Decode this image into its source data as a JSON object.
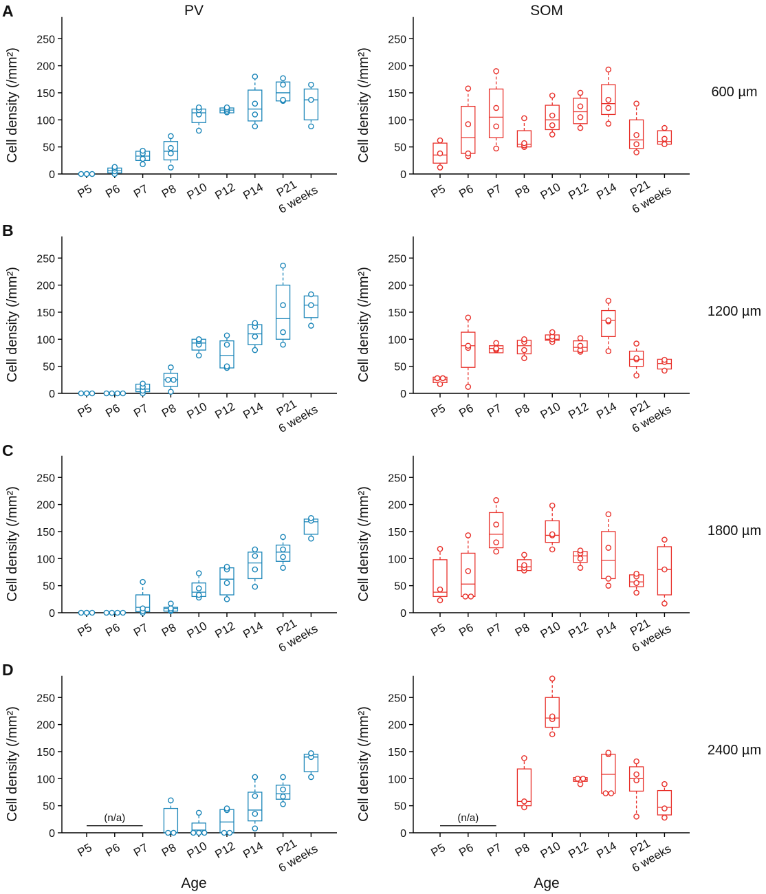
{
  "titles": {
    "left": "PV",
    "right": "SOM"
  },
  "panels": [
    "A",
    "B",
    "C",
    "D"
  ],
  "depths": [
    "600 µm",
    "1200 µm",
    "1800 µm",
    "2400 µm"
  ],
  "xlabel": "Age",
  "na_label": "(n/a)",
  "colors": {
    "pv": "#1a85b8",
    "som": "#e8302a",
    "axis": "#000000"
  },
  "chart_data": {
    "type": "box",
    "ylabel": "Cell density (/mm²)",
    "ylim": [
      0,
      290
    ],
    "yticks": [
      0,
      50,
      100,
      150,
      200,
      250
    ],
    "categories": [
      "P5",
      "P6",
      "P7",
      "P8",
      "P10",
      "P12",
      "P14",
      "P21",
      "6 weeks"
    ],
    "charts": [
      {
        "panel": "A",
        "cell": "PV",
        "depth": "600 µm",
        "boxes": [
          {
            "c": "P5",
            "q1": 0,
            "med": 0,
            "q3": 0,
            "min": 0,
            "max": 0,
            "pts": [
              0,
              0,
              0
            ]
          },
          {
            "c": "P6",
            "q1": 2,
            "med": 6,
            "q3": 11,
            "min": 0,
            "max": 13,
            "pts": [
              0,
              5,
              10,
              13
            ]
          },
          {
            "c": "P7",
            "q1": 25,
            "med": 33,
            "q3": 42,
            "min": 18,
            "max": 45,
            "pts": [
              18,
              28,
              38,
              43
            ]
          },
          {
            "c": "P8",
            "q1": 26,
            "med": 42,
            "q3": 60,
            "min": 12,
            "max": 70,
            "pts": [
              12,
              38,
              48,
              70
            ]
          },
          {
            "c": "P10",
            "q1": 95,
            "med": 113,
            "q3": 120,
            "min": 80,
            "max": 123,
            "pts": [
              80,
              110,
              118,
              123
            ]
          },
          {
            "c": "P12",
            "q1": 113,
            "med": 118,
            "q3": 122,
            "min": 113,
            "max": 123,
            "pts": [
              114,
              117,
              120,
              123
            ]
          },
          {
            "c": "P14",
            "q1": 98,
            "med": 120,
            "q3": 155,
            "min": 88,
            "max": 180,
            "pts": [
              88,
              110,
              130,
              180
            ]
          },
          {
            "c": "P21",
            "q1": 135,
            "med": 150,
            "q3": 170,
            "min": 135,
            "max": 177,
            "pts": [
              135,
              137,
              165,
              177
            ]
          },
          {
            "c": "6 weeks",
            "q1": 100,
            "med": 137,
            "q3": 157,
            "min": 88,
            "max": 165,
            "pts": [
              88,
              137,
              165
            ]
          }
        ]
      },
      {
        "panel": "A",
        "cell": "SOM",
        "depth": "600 µm",
        "boxes": [
          {
            "c": "P5",
            "q1": 20,
            "med": 35,
            "q3": 57,
            "min": 12,
            "max": 62,
            "pts": [
              12,
              38,
              62
            ]
          },
          {
            "c": "P6",
            "q1": 38,
            "med": 67,
            "q3": 125,
            "min": 33,
            "max": 158,
            "pts": [
              33,
              38,
              92,
              158
            ]
          },
          {
            "c": "P7",
            "q1": 67,
            "med": 105,
            "q3": 157,
            "min": 47,
            "max": 190,
            "pts": [
              47,
              88,
              122,
              190
            ]
          },
          {
            "c": "P8",
            "q1": 50,
            "med": 55,
            "q3": 80,
            "min": 50,
            "max": 103,
            "pts": [
              50,
              53,
              57,
              103
            ]
          },
          {
            "c": "P10",
            "q1": 82,
            "med": 100,
            "q3": 127,
            "min": 73,
            "max": 145,
            "pts": [
              73,
              90,
              108,
              145
            ]
          },
          {
            "c": "P12",
            "q1": 93,
            "med": 115,
            "q3": 140,
            "min": 85,
            "max": 150,
            "pts": [
              85,
              105,
              125,
              150
            ]
          },
          {
            "c": "P14",
            "q1": 110,
            "med": 130,
            "q3": 165,
            "min": 93,
            "max": 193,
            "pts": [
              93,
              122,
              137,
              193
            ]
          },
          {
            "c": "P21",
            "q1": 47,
            "med": 63,
            "q3": 100,
            "min": 40,
            "max": 130,
            "pts": [
              40,
              55,
              72,
              130
            ]
          },
          {
            "c": "6 weeks",
            "q1": 55,
            "med": 60,
            "q3": 80,
            "min": 55,
            "max": 85,
            "pts": [
              55,
              65,
              85
            ]
          }
        ]
      },
      {
        "panel": "B",
        "cell": "PV",
        "depth": "1200 µm",
        "boxes": [
          {
            "c": "P5",
            "q1": 0,
            "med": 0,
            "q3": 0,
            "min": 0,
            "max": 0,
            "pts": [
              0,
              0,
              0
            ]
          },
          {
            "c": "P6",
            "q1": 0,
            "med": 0,
            "q3": 0,
            "min": 0,
            "max": 0,
            "pts": [
              0,
              0,
              0,
              0
            ]
          },
          {
            "c": "P7",
            "q1": 3,
            "med": 8,
            "q3": 17,
            "min": 0,
            "max": 18,
            "pts": [
              0,
              5,
              12,
              18
            ]
          },
          {
            "c": "P8",
            "q1": 13,
            "med": 25,
            "q3": 37,
            "min": 3,
            "max": 48,
            "pts": [
              3,
              25,
              25,
              48
            ]
          },
          {
            "c": "P10",
            "q1": 80,
            "med": 93,
            "q3": 100,
            "min": 70,
            "max": 100,
            "pts": [
              70,
              90,
              97,
              100
            ]
          },
          {
            "c": "P12",
            "q1": 47,
            "med": 70,
            "q3": 97,
            "min": 47,
            "max": 107,
            "pts": [
              47,
              50,
              90,
              107
            ]
          },
          {
            "c": "P14",
            "q1": 90,
            "med": 110,
            "q3": 127,
            "min": 80,
            "max": 130,
            "pts": [
              80,
              105,
              123,
              130
            ]
          },
          {
            "c": "P21",
            "q1": 100,
            "med": 138,
            "q3": 200,
            "min": 90,
            "max": 236,
            "pts": [
              90,
              113,
              163,
              236
            ]
          },
          {
            "c": "6 weeks",
            "q1": 140,
            "med": 163,
            "q3": 180,
            "min": 125,
            "max": 183,
            "pts": [
              125,
              163,
              183
            ]
          }
        ]
      },
      {
        "panel": "B",
        "cell": "SOM",
        "depth": "1200 µm",
        "boxes": [
          {
            "c": "P5",
            "q1": 20,
            "med": 25,
            "q3": 30,
            "min": 17,
            "max": 30,
            "pts": [
              17,
              28,
              28
            ]
          },
          {
            "c": "P6",
            "q1": 48,
            "med": 88,
            "q3": 113,
            "min": 12,
            "max": 140,
            "pts": [
              12,
              84,
              88,
              140
            ]
          },
          {
            "c": "P7",
            "q1": 75,
            "med": 83,
            "q3": 88,
            "min": 75,
            "max": 93,
            "pts": [
              80,
              82,
              83,
              93
            ]
          },
          {
            "c": "P8",
            "q1": 73,
            "med": 88,
            "q3": 98,
            "min": 65,
            "max": 100,
            "pts": [
              65,
              80,
              95,
              100
            ]
          },
          {
            "c": "P10",
            "q1": 98,
            "med": 100,
            "q3": 108,
            "min": 95,
            "max": 113,
            "pts": [
              95,
              100,
              105,
              113
            ]
          },
          {
            "c": "P12",
            "q1": 78,
            "med": 85,
            "q3": 97,
            "min": 77,
            "max": 102,
            "pts": [
              77,
              80,
              88,
              102
            ]
          },
          {
            "c": "P14",
            "q1": 105,
            "med": 135,
            "q3": 153,
            "min": 78,
            "max": 171,
            "pts": [
              78,
              133,
              135,
              171
            ]
          },
          {
            "c": "P21",
            "q1": 50,
            "med": 63,
            "q3": 78,
            "min": 33,
            "max": 92,
            "pts": [
              33,
              63,
              65,
              92
            ]
          },
          {
            "c": "6 weeks",
            "q1": 45,
            "med": 55,
            "q3": 63,
            "min": 42,
            "max": 65,
            "pts": [
              42,
              58,
              62
            ]
          }
        ]
      },
      {
        "panel": "C",
        "cell": "PV",
        "depth": "1800 µm",
        "boxes": [
          {
            "c": "P5",
            "q1": 0,
            "med": 0,
            "q3": 0,
            "min": 0,
            "max": 0,
            "pts": [
              0,
              0,
              0
            ]
          },
          {
            "c": "P6",
            "q1": 0,
            "med": 0,
            "q3": 0,
            "min": 0,
            "max": 0,
            "pts": [
              0,
              0,
              0,
              0
            ]
          },
          {
            "c": "P7",
            "q1": 2,
            "med": 10,
            "q3": 33,
            "min": 0,
            "max": 57,
            "pts": [
              0,
              3,
              8,
              57
            ]
          },
          {
            "c": "P8",
            "q1": 3,
            "med": 8,
            "q3": 10,
            "min": 3,
            "max": 17,
            "pts": [
              3,
              5,
              8,
              17
            ]
          },
          {
            "c": "P10",
            "q1": 30,
            "med": 38,
            "q3": 55,
            "min": 28,
            "max": 73,
            "pts": [
              28,
              33,
              45,
              73
            ]
          },
          {
            "c": "P12",
            "q1": 33,
            "med": 62,
            "q3": 83,
            "min": 25,
            "max": 85,
            "pts": [
              25,
              55,
              80,
              85
            ]
          },
          {
            "c": "P14",
            "q1": 63,
            "med": 92,
            "q3": 112,
            "min": 48,
            "max": 117,
            "pts": [
              48,
              80,
              105,
              117
            ]
          },
          {
            "c": "P21",
            "q1": 95,
            "med": 112,
            "q3": 125,
            "min": 83,
            "max": 140,
            "pts": [
              83,
              103,
              117,
              140
            ]
          },
          {
            "c": "6 weeks",
            "q1": 145,
            "med": 168,
            "q3": 173,
            "min": 137,
            "max": 175,
            "pts": [
              137,
              170,
              175
            ]
          }
        ]
      },
      {
        "panel": "C",
        "cell": "SOM",
        "depth": "1800 µm",
        "boxes": [
          {
            "c": "P5",
            "q1": 30,
            "med": 38,
            "q3": 98,
            "min": 23,
            "max": 118,
            "pts": [
              23,
              43,
              118
            ]
          },
          {
            "c": "P6",
            "q1": 30,
            "med": 53,
            "q3": 110,
            "min": 30,
            "max": 143,
            "pts": [
              30,
              30,
              77,
              143
            ]
          },
          {
            "c": "P7",
            "q1": 120,
            "med": 145,
            "q3": 185,
            "min": 113,
            "max": 208,
            "pts": [
              113,
              130,
              163,
              208
            ]
          },
          {
            "c": "P8",
            "q1": 78,
            "med": 85,
            "q3": 98,
            "min": 78,
            "max": 107,
            "pts": [
              78,
              83,
              88,
              107
            ]
          },
          {
            "c": "P10",
            "q1": 130,
            "med": 143,
            "q3": 170,
            "min": 117,
            "max": 198,
            "pts": [
              117,
              143,
              145,
              198
            ]
          },
          {
            "c": "P12",
            "q1": 93,
            "med": 105,
            "q3": 113,
            "min": 83,
            "max": 115,
            "pts": [
              83,
              100,
              110,
              115
            ]
          },
          {
            "c": "P14",
            "q1": 63,
            "med": 97,
            "q3": 150,
            "min": 50,
            "max": 182,
            "pts": [
              50,
              63,
              120,
              182
            ]
          },
          {
            "c": "P21",
            "q1": 48,
            "med": 57,
            "q3": 70,
            "min": 37,
            "max": 72,
            "pts": [
              37,
              55,
              67,
              72
            ]
          },
          {
            "c": "6 weeks",
            "q1": 33,
            "med": 80,
            "q3": 122,
            "min": 17,
            "max": 135,
            "pts": [
              17,
              80,
              135
            ]
          }
        ]
      },
      {
        "panel": "D",
        "cell": "PV",
        "depth": "2400 µm",
        "na": [
          "P5",
          "P6",
          "P7"
        ],
        "boxes": [
          {
            "c": "P8",
            "q1": 0,
            "med": 0,
            "q3": 45,
            "min": 0,
            "max": 60,
            "pts": [
              0,
              0,
              60
            ]
          },
          {
            "c": "P10",
            "q1": 0,
            "med": 5,
            "q3": 18,
            "min": 0,
            "max": 37,
            "pts": [
              0,
              0,
              0,
              37
            ]
          },
          {
            "c": "P12",
            "q1": 0,
            "med": 20,
            "q3": 43,
            "min": 0,
            "max": 45,
            "pts": [
              0,
              0,
              42,
              45
            ]
          },
          {
            "c": "P14",
            "q1": 22,
            "med": 42,
            "q3": 75,
            "min": 8,
            "max": 103,
            "pts": [
              8,
              35,
              68,
              103
            ]
          },
          {
            "c": "P21",
            "q1": 62,
            "med": 72,
            "q3": 88,
            "min": 53,
            "max": 103,
            "pts": [
              53,
              67,
              80,
              103
            ]
          },
          {
            "c": "6 weeks",
            "q1": 113,
            "med": 140,
            "q3": 145,
            "min": 103,
            "max": 147,
            "pts": [
              103,
              140,
              147
            ]
          }
        ]
      },
      {
        "panel": "D",
        "cell": "SOM",
        "depth": "2400 µm",
        "na": [
          "P5",
          "P6",
          "P7"
        ],
        "boxes": [
          {
            "c": "P8",
            "q1": 50,
            "med": 58,
            "q3": 118,
            "min": 47,
            "max": 138,
            "pts": [
              47,
              58,
              138
            ]
          },
          {
            "c": "P10",
            "q1": 195,
            "med": 212,
            "q3": 250,
            "min": 182,
            "max": 285,
            "pts": [
              182,
              210,
              215,
              285
            ]
          },
          {
            "c": "P12",
            "q1": 95,
            "med": 98,
            "q3": 102,
            "min": 90,
            "max": 102,
            "pts": [
              90,
              98,
              100,
              100
            ]
          },
          {
            "c": "P14",
            "q1": 73,
            "med": 108,
            "q3": 145,
            "min": 73,
            "max": 148,
            "pts": [
              73,
              73,
              145,
              148
            ]
          },
          {
            "c": "P21",
            "q1": 77,
            "med": 100,
            "q3": 122,
            "min": 30,
            "max": 132,
            "pts": [
              30,
              97,
              108,
              132
            ]
          },
          {
            "c": "6 weeks",
            "q1": 33,
            "med": 47,
            "q3": 78,
            "min": 28,
            "max": 90,
            "pts": [
              28,
              45,
              90
            ]
          }
        ]
      }
    ]
  }
}
